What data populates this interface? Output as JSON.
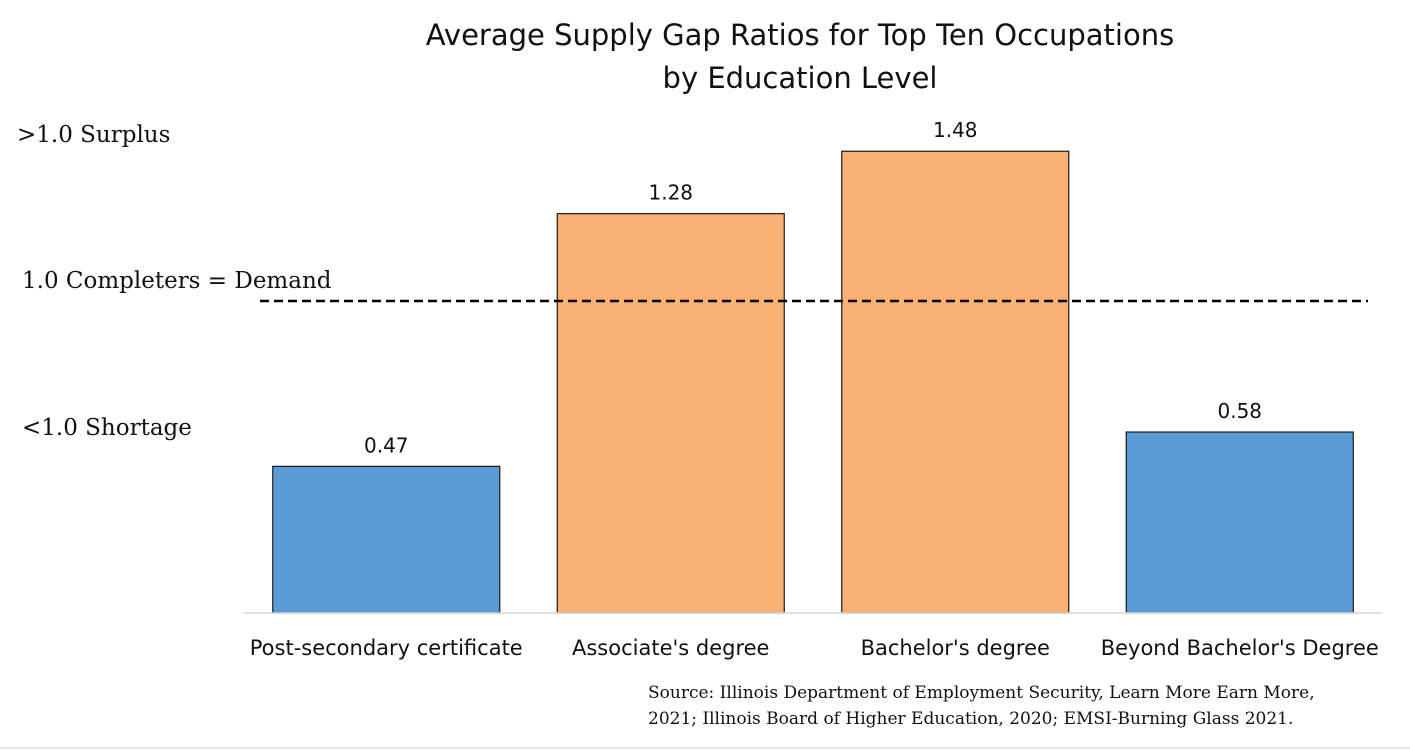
{
  "chart_data": {
    "type": "bar",
    "title": "Average Supply Gap Ratios for Top Ten Occupations",
    "subtitle": "by Education Level",
    "categories": [
      "Post-secondary certificate",
      "Associate's degree",
      "Bachelor's degree",
      "Beyond Bachelor's Degree"
    ],
    "values": [
      0.47,
      1.28,
      1.48,
      0.58
    ],
    "value_labels": [
      "0.47",
      "1.28",
      "1.48",
      "0.58"
    ],
    "bar_colors": [
      "#5b9bd5",
      "#f8b075",
      "#f8b075",
      "#5b9bd5"
    ],
    "reference_line": {
      "value": 1.0,
      "style": "dashed",
      "color": "#000000"
    },
    "annotations": {
      "surplus": ">1.0  Surplus",
      "equal": "1.0  Completers = Demand",
      "shortage": "<1.0 Shortage"
    },
    "ylim": [
      0,
      1.6
    ],
    "grid": false,
    "legend": "none",
    "source_lines": [
      "Source:  Illinois Department of Employment Security, Learn More Earn More,",
      "2021; Illinois Board of Higher Education, 2020; EMSI-Burning Glass 2021."
    ]
  }
}
